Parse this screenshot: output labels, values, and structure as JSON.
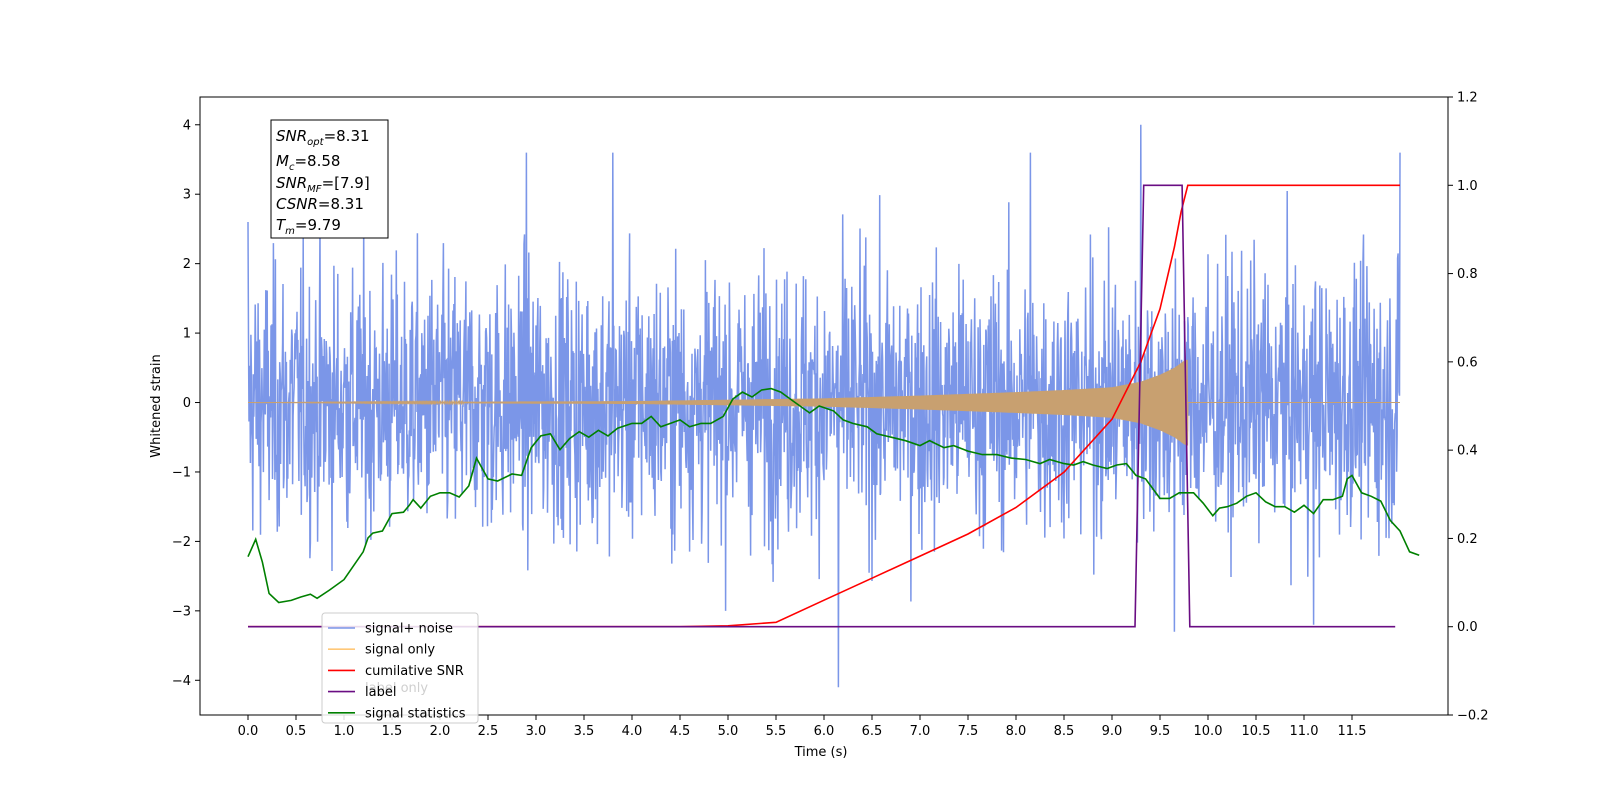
{
  "chart_data": {
    "type": "line",
    "xlabel": "Time (s)",
    "ylabel": "Whitened strain",
    "xlim": [
      -0.5,
      12.5
    ],
    "ylim": [
      -4.5,
      4.4
    ],
    "y2lim": [
      -0.2,
      1.2
    ],
    "xticks": [
      0.0,
      0.5,
      1.0,
      1.5,
      2.0,
      2.5,
      3.0,
      3.5,
      4.0,
      4.5,
      5.0,
      5.5,
      6.0,
      6.5,
      7.0,
      7.5,
      8.0,
      8.5,
      9.0,
      9.5,
      10.0,
      10.5,
      11.0,
      11.5
    ],
    "xtick_labels": [
      "0.0",
      "0.5",
      "1.0",
      "1.5",
      "2.0",
      "2.5",
      "3.0",
      "3.5",
      "4.0",
      "4.5",
      "5.0",
      "5.5",
      "6.0",
      "6.5",
      "7.0",
      "7.5",
      "8.0",
      "8.5",
      "9.0",
      "9.5",
      "10.0",
      "10.5",
      "11.0",
      "11.5"
    ],
    "yticks": [
      -4,
      -3,
      -2,
      -1,
      0,
      1,
      2,
      3,
      4
    ],
    "ytick_labels": [
      "−4",
      "−3",
      "−2",
      "−1",
      "0",
      "1",
      "2",
      "3",
      "4"
    ],
    "y2ticks": [
      -0.2,
      0.0,
      0.2,
      0.4,
      0.6,
      0.8,
      1.0,
      1.2
    ],
    "y2tick_labels": [
      "−0.2",
      "0.0",
      "0.2",
      "0.4",
      "0.6",
      "0.8",
      "1.0",
      "1.2"
    ],
    "annotation": {
      "lines": [
        {
          "sym": "SNR",
          "sub": "opt",
          "val": "=8.31"
        },
        {
          "sym": "M",
          "sub": "c",
          "val": "=8.58"
        },
        {
          "sym": "SNR",
          "sub": "MF",
          "val": "=[7.9]"
        },
        {
          "sym": "CSNR",
          "sub": "",
          "val": "=8.31"
        },
        {
          "sym": "T",
          "sub": "m",
          "val": "=9.79"
        }
      ]
    },
    "legend": {
      "placement": "lower-left",
      "entries": [
        {
          "label": "signal+ noise",
          "color": "#7b96e8"
        },
        {
          "label": "signal only",
          "color": "#ffc878"
        },
        {
          "label": "cumilative SNR",
          "color": "#ff0000"
        },
        {
          "label": "label",
          "color": "#6a0d83"
        },
        {
          "label": "signal statistics",
          "color": "#008000"
        }
      ],
      "hidden_text": "label only"
    },
    "series": [
      {
        "name": "signal+ noise",
        "axis": "left",
        "style": "noise",
        "color": "#7b96e8",
        "t_start": 0.0,
        "t_end": 12.0,
        "envelope_sigma": 0.95,
        "spikes": [
          [
            0.0,
            2.6
          ],
          [
            2.9,
            3.6
          ],
          [
            3.8,
            3.6
          ],
          [
            6.15,
            -4.1
          ],
          [
            8.15,
            3.6
          ],
          [
            9.3,
            4.0
          ],
          [
            9.65,
            -3.3
          ],
          [
            11.1,
            -3.2
          ],
          [
            12.0,
            3.6
          ]
        ]
      },
      {
        "name": "signal only",
        "axis": "left",
        "style": "chirp",
        "color": "#c8a070",
        "t_start": 0.0,
        "t_merge": 9.79,
        "t_end": 12.0,
        "amplitude_points": [
          [
            0.0,
            0.0
          ],
          [
            4.0,
            0.02
          ],
          [
            6.0,
            0.06
          ],
          [
            7.0,
            0.1
          ],
          [
            8.0,
            0.15
          ],
          [
            8.5,
            0.18
          ],
          [
            9.0,
            0.22
          ],
          [
            9.3,
            0.3
          ],
          [
            9.5,
            0.4
          ],
          [
            9.65,
            0.5
          ],
          [
            9.75,
            0.6
          ],
          [
            9.79,
            0.62
          ]
        ]
      },
      {
        "name": "cumilative SNR",
        "axis": "right",
        "color": "#ff0000",
        "points": [
          [
            0.0,
            0.0
          ],
          [
            4.5,
            0.0
          ],
          [
            5.0,
            0.002
          ],
          [
            5.5,
            0.01
          ],
          [
            6.0,
            0.06
          ],
          [
            6.5,
            0.11
          ],
          [
            7.0,
            0.16
          ],
          [
            7.5,
            0.21
          ],
          [
            8.0,
            0.27
          ],
          [
            8.5,
            0.35
          ],
          [
            9.0,
            0.47
          ],
          [
            9.3,
            0.6
          ],
          [
            9.5,
            0.72
          ],
          [
            9.65,
            0.86
          ],
          [
            9.72,
            0.94
          ],
          [
            9.79,
            1.0
          ],
          [
            12.0,
            1.0
          ]
        ]
      },
      {
        "name": "label",
        "axis": "right",
        "color": "#6a0d83",
        "points": [
          [
            0.0,
            0.0
          ],
          [
            9.24,
            0.0
          ],
          [
            9.33,
            1.0
          ],
          [
            9.73,
            1.0
          ],
          [
            9.81,
            0.0
          ],
          [
            11.95,
            0.0
          ]
        ]
      },
      {
        "name": "signal statistics",
        "axis": "left",
        "color": "#008000",
        "points": [
          [
            0.0,
            -2.22
          ],
          [
            0.08,
            -1.97
          ],
          [
            0.15,
            -2.3
          ],
          [
            0.22,
            -2.75
          ],
          [
            0.32,
            -2.88
          ],
          [
            0.45,
            -2.85
          ],
          [
            0.55,
            -2.8
          ],
          [
            0.65,
            -2.76
          ],
          [
            0.72,
            -2.82
          ],
          [
            0.85,
            -2.7
          ],
          [
            1.0,
            -2.55
          ],
          [
            1.1,
            -2.35
          ],
          [
            1.2,
            -2.15
          ],
          [
            1.25,
            -1.95
          ],
          [
            1.3,
            -1.88
          ],
          [
            1.4,
            -1.85
          ],
          [
            1.5,
            -1.6
          ],
          [
            1.62,
            -1.58
          ],
          [
            1.68,
            -1.48
          ],
          [
            1.72,
            -1.4
          ],
          [
            1.8,
            -1.52
          ],
          [
            1.9,
            -1.35
          ],
          [
            2.0,
            -1.3
          ],
          [
            2.1,
            -1.3
          ],
          [
            2.2,
            -1.36
          ],
          [
            2.3,
            -1.2
          ],
          [
            2.38,
            -0.8
          ],
          [
            2.5,
            -1.1
          ],
          [
            2.6,
            -1.13
          ],
          [
            2.75,
            -1.03
          ],
          [
            2.85,
            -1.05
          ],
          [
            2.95,
            -0.65
          ],
          [
            3.05,
            -0.48
          ],
          [
            3.15,
            -0.45
          ],
          [
            3.25,
            -0.68
          ],
          [
            3.35,
            -0.52
          ],
          [
            3.45,
            -0.42
          ],
          [
            3.55,
            -0.5
          ],
          [
            3.65,
            -0.4
          ],
          [
            3.75,
            -0.48
          ],
          [
            3.85,
            -0.37
          ],
          [
            4.0,
            -0.3
          ],
          [
            4.1,
            -0.3
          ],
          [
            4.2,
            -0.2
          ],
          [
            4.3,
            -0.35
          ],
          [
            4.4,
            -0.3
          ],
          [
            4.5,
            -0.25
          ],
          [
            4.6,
            -0.35
          ],
          [
            4.72,
            -0.3
          ],
          [
            4.82,
            -0.3
          ],
          [
            4.95,
            -0.2
          ],
          [
            5.05,
            0.05
          ],
          [
            5.15,
            0.15
          ],
          [
            5.25,
            0.08
          ],
          [
            5.35,
            0.18
          ],
          [
            5.45,
            0.2
          ],
          [
            5.55,
            0.15
          ],
          [
            5.65,
            0.05
          ],
          [
            5.75,
            -0.05
          ],
          [
            5.85,
            -0.15
          ],
          [
            5.95,
            -0.05
          ],
          [
            6.1,
            -0.12
          ],
          [
            6.2,
            -0.25
          ],
          [
            6.3,
            -0.3
          ],
          [
            6.45,
            -0.35
          ],
          [
            6.55,
            -0.45
          ],
          [
            6.7,
            -0.5
          ],
          [
            6.85,
            -0.55
          ],
          [
            7.0,
            -0.62
          ],
          [
            7.1,
            -0.55
          ],
          [
            7.25,
            -0.65
          ],
          [
            7.35,
            -0.62
          ],
          [
            7.5,
            -0.7
          ],
          [
            7.65,
            -0.75
          ],
          [
            7.8,
            -0.75
          ],
          [
            7.95,
            -0.8
          ],
          [
            8.1,
            -0.82
          ],
          [
            8.25,
            -0.88
          ],
          [
            8.35,
            -0.82
          ],
          [
            8.5,
            -0.88
          ],
          [
            8.6,
            -0.9
          ],
          [
            8.7,
            -0.85
          ],
          [
            8.8,
            -0.9
          ],
          [
            8.95,
            -0.95
          ],
          [
            9.05,
            -0.9
          ],
          [
            9.15,
            -0.88
          ],
          [
            9.25,
            -1.05
          ],
          [
            9.35,
            -1.1
          ],
          [
            9.5,
            -1.38
          ],
          [
            9.6,
            -1.38
          ],
          [
            9.7,
            -1.3
          ],
          [
            9.85,
            -1.3
          ],
          [
            9.95,
            -1.45
          ],
          [
            10.05,
            -1.63
          ],
          [
            10.12,
            -1.52
          ],
          [
            10.2,
            -1.5
          ],
          [
            10.3,
            -1.45
          ],
          [
            10.4,
            -1.35
          ],
          [
            10.5,
            -1.3
          ],
          [
            10.6,
            -1.43
          ],
          [
            10.7,
            -1.5
          ],
          [
            10.8,
            -1.5
          ],
          [
            10.9,
            -1.58
          ],
          [
            11.0,
            -1.48
          ],
          [
            11.1,
            -1.6
          ],
          [
            11.2,
            -1.4
          ],
          [
            11.3,
            -1.4
          ],
          [
            11.4,
            -1.35
          ],
          [
            11.45,
            -1.1
          ],
          [
            11.5,
            -1.05
          ],
          [
            11.6,
            -1.3
          ],
          [
            11.7,
            -1.35
          ],
          [
            11.8,
            -1.42
          ],
          [
            11.9,
            -1.7
          ],
          [
            12.0,
            -1.85
          ],
          [
            12.05,
            -2.0
          ],
          [
            12.1,
            -2.15
          ],
          [
            12.2,
            -2.2
          ]
        ]
      }
    ]
  }
}
